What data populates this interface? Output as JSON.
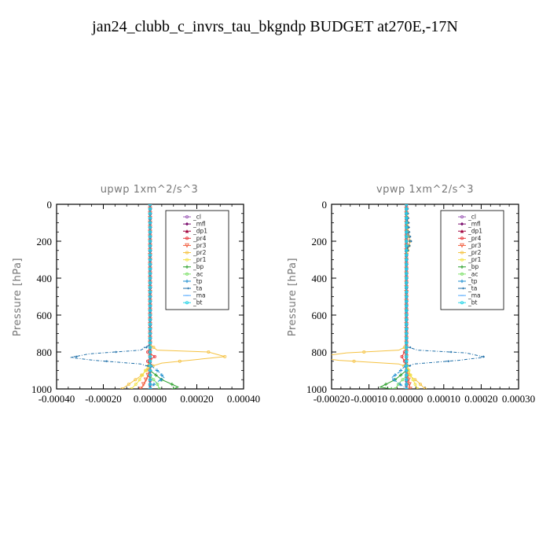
{
  "title": "jan24_clubb_c_invrs_tau_bkgndp  BUDGET at270E,-17N",
  "chart_data": [
    {
      "type": "line",
      "title": "upwp   1xm^2/s^3",
      "ylabel": "Pressure [hPa]",
      "xlim": [
        -0.0004,
        0.0004
      ],
      "ylim": [
        1000,
        0
      ],
      "xticks": [
        -0.0004,
        -0.0002,
        0.0,
        0.0002,
        0.0004
      ],
      "xtick_labels": [
        "-0.00040",
        "-0.00020",
        "0.00000",
        "0.00020",
        "0.00040"
      ],
      "yticks": [
        0,
        200,
        400,
        600,
        800,
        1000
      ],
      "ytick_labels": [
        "0",
        "200",
        "400",
        "600",
        "800",
        "1000"
      ],
      "legend_position": "top-right",
      "series": [
        {
          "name": "_cl",
          "color": "#9b59b6",
          "points": [
            [
              0,
              0
            ],
            [
              0,
              1000
            ]
          ]
        },
        {
          "name": "_mfl",
          "color": "#7b0f6e",
          "points": [
            [
              0,
              0
            ],
            [
              0,
              1000
            ]
          ]
        },
        {
          "name": "_dp1",
          "color": "#a0003c",
          "points": [
            [
              0,
              0
            ],
            [
              0,
              1000
            ]
          ]
        },
        {
          "name": "_pr4",
          "color": "#e8383b",
          "points": [
            [
              0,
              0
            ],
            [
              0,
              780
            ],
            [
              -1e-05,
              800
            ],
            [
              2e-05,
              825
            ],
            [
              -1e-05,
              850
            ],
            [
              0,
              880
            ],
            [
              0,
              1000
            ]
          ]
        },
        {
          "name": "_pr3",
          "color": "#f25c3c",
          "points": [
            [
              0,
              0
            ],
            [
              0,
              880
            ],
            [
              -1e-05,
              930
            ],
            [
              -3e-05,
              980
            ],
            [
              -4e-05,
              1000
            ]
          ]
        },
        {
          "name": "_pr2",
          "color": "#f5c242",
          "points": [
            [
              0,
              0
            ],
            [
              0,
              760
            ],
            [
              3e-05,
              790
            ],
            [
              0.00025,
              800
            ],
            [
              0.00032,
              825
            ],
            [
              5e-05,
              860
            ],
            [
              0,
              880
            ],
            [
              -4e-05,
              930
            ],
            [
              -0.00012,
              1000
            ]
          ]
        },
        {
          "name": "_pr1",
          "color": "#f2e34a",
          "points": [
            [
              0,
              0
            ],
            [
              0,
              860
            ],
            [
              -3e-05,
              920
            ],
            [
              -5e-05,
              960
            ],
            [
              -8e-05,
              1000
            ]
          ]
        },
        {
          "name": "_bp",
          "color": "#2ca02c",
          "points": [
            [
              0,
              0
            ],
            [
              0,
              900
            ],
            [
              5e-05,
              950
            ],
            [
              0.00012,
              990
            ],
            [
              0.0001,
              1000
            ]
          ]
        },
        {
          "name": "_ac",
          "color": "#7ee06b",
          "points": [
            [
              0,
              0
            ],
            [
              0,
              930
            ],
            [
              3e-05,
              970
            ],
            [
              4e-05,
              1000
            ]
          ]
        },
        {
          "name": "_tp",
          "color": "#1f8fd0",
          "points": [
            [
              0,
              0
            ],
            [
              0,
              870
            ],
            [
              4e-05,
              910
            ],
            [
              6e-05,
              940
            ],
            [
              2e-05,
              970
            ],
            [
              0,
              1000
            ]
          ]
        },
        {
          "name": "_ta",
          "color": "#1f6fa8",
          "points": [
            [
              0,
              0
            ],
            [
              0,
              760
            ],
            [
              -4e-05,
              790
            ],
            [
              -0.00026,
              810
            ],
            [
              -0.00034,
              830
            ],
            [
              -0.00024,
              845
            ],
            [
              -4e-05,
              865
            ],
            [
              0,
              880
            ],
            [
              0,
              1000
            ]
          ]
        },
        {
          "name": "_ma",
          "color": "#4da6ff",
          "points": [
            [
              0,
              0
            ],
            [
              0,
              1000
            ]
          ]
        },
        {
          "name": "_bt",
          "color": "#22d3e6",
          "points": [
            [
              0,
              0
            ],
            [
              0,
              1000
            ]
          ]
        }
      ]
    },
    {
      "type": "line",
      "title": "vpwp   1xm^2/s^3",
      "ylabel": "Pressure [hPa]",
      "xlim": [
        -0.0002,
        0.0003
      ],
      "ylim": [
        1000,
        0
      ],
      "xticks": [
        -0.0002,
        -0.0001,
        0.0,
        0.0001,
        0.0002,
        0.0003
      ],
      "xtick_labels": [
        "-0.00020",
        "-0.00010",
        "0.00000",
        "0.00010",
        "0.00020",
        "0.00030"
      ],
      "yticks": [
        0,
        200,
        400,
        600,
        800,
        1000
      ],
      "ytick_labels": [
        "0",
        "200",
        "400",
        "600",
        "800",
        "1000"
      ],
      "legend_position": "top-right",
      "series": [
        {
          "name": "_cl",
          "color": "#9b59b6",
          "points": [
            [
              0,
              0
            ],
            [
              0,
              1000
            ]
          ]
        },
        {
          "name": "_mfl",
          "color": "#7b0f6e",
          "points": [
            [
              0,
              0
            ],
            [
              0,
              1000
            ]
          ]
        },
        {
          "name": "_dp1",
          "color": "#a0003c",
          "points": [
            [
              0,
              0
            ],
            [
              0,
              1000
            ]
          ]
        },
        {
          "name": "_pr4",
          "color": "#e8383b",
          "points": [
            [
              0,
              0
            ],
            [
              0,
              780
            ],
            [
              -5e-06,
              800
            ],
            [
              -1.2e-05,
              825
            ],
            [
              -5e-06,
              850
            ],
            [
              0,
              880
            ],
            [
              0,
              1000
            ]
          ]
        },
        {
          "name": "_pr3",
          "color": "#f25c3c",
          "points": [
            [
              0,
              0
            ],
            [
              0,
              880
            ],
            [
              5e-06,
              940
            ],
            [
              1e-05,
              1000
            ]
          ]
        },
        {
          "name": "_pr2",
          "color": "#f5c242",
          "points": [
            [
              0,
              0
            ],
            [
              5e-06,
              160
            ],
            [
              1e-05,
              200
            ],
            [
              5e-06,
              240
            ],
            [
              0,
              280
            ],
            [
              0,
              770
            ],
            [
              -2e-05,
              790
            ],
            [
              -0.00016,
              805
            ],
            [
              -0.00025,
              828
            ],
            [
              -0.00018,
              845
            ],
            [
              -2e-05,
              865
            ],
            [
              0,
              880
            ],
            [
              1e-05,
              930
            ],
            [
              3e-05,
              960
            ],
            [
              5e-05,
              1000
            ]
          ]
        },
        {
          "name": "_pr1",
          "color": "#f2e34a",
          "points": [
            [
              0,
              0
            ],
            [
              0,
              860
            ],
            [
              1e-05,
              920
            ],
            [
              2e-05,
              960
            ],
            [
              3e-05,
              1000
            ]
          ]
        },
        {
          "name": "_bp",
          "color": "#2ca02c",
          "points": [
            [
              0,
              0
            ],
            [
              0,
              900
            ],
            [
              -3e-05,
              950
            ],
            [
              -7e-05,
              990
            ],
            [
              -4e-05,
              1000
            ]
          ]
        },
        {
          "name": "_ac",
          "color": "#7ee06b",
          "points": [
            [
              0,
              0
            ],
            [
              0,
              930
            ],
            [
              -2e-05,
              970
            ],
            [
              -3e-05,
              1000
            ]
          ]
        },
        {
          "name": "_tp",
          "color": "#1f8fd0",
          "points": [
            [
              0,
              0
            ],
            [
              0,
              870
            ],
            [
              -2e-05,
              910
            ],
            [
              -4e-05,
              940
            ],
            [
              -2e-05,
              970
            ],
            [
              0,
              1000
            ]
          ]
        },
        {
          "name": "_ta",
          "color": "#1f6fa8",
          "points": [
            [
              0,
              0
            ],
            [
              5e-06,
              150
            ],
            [
              1e-05,
              200
            ],
            [
              0,
              260
            ],
            [
              0,
              770
            ],
            [
              3e-05,
              790
            ],
            [
              0.00016,
              805
            ],
            [
              0.00021,
              828
            ],
            [
              0.00014,
              845
            ],
            [
              2e-05,
              865
            ],
            [
              0,
              880
            ],
            [
              0,
              1000
            ]
          ]
        },
        {
          "name": "_ma",
          "color": "#4da6ff",
          "points": [
            [
              0,
              0
            ],
            [
              0,
              1000
            ]
          ]
        },
        {
          "name": "_bt",
          "color": "#22d3e6",
          "points": [
            [
              0,
              0
            ],
            [
              0,
              1000
            ]
          ]
        }
      ]
    }
  ]
}
